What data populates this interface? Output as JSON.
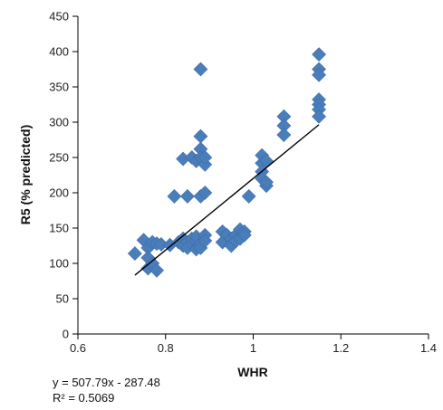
{
  "chart_data": {
    "type": "scatter",
    "title": "",
    "xlabel": "WHR",
    "ylabel": "R5 (% predicted)",
    "xlim": [
      0.6,
      1.4
    ],
    "ylim": [
      0,
      450
    ],
    "xticks": [
      "0.6",
      "0.8",
      "1",
      "1.2",
      "1.4"
    ],
    "yticks": [
      "0",
      "50",
      "100",
      "150",
      "200",
      "250",
      "300",
      "350",
      "400",
      "450"
    ],
    "grid": false,
    "legend": "none",
    "marker_color": "#4a7ebb",
    "trendline": {
      "slope": 507.79,
      "intercept": -287.48,
      "x_range": [
        0.73,
        1.15
      ],
      "equation_label": "y = 507.79x - 287.48",
      "r2_label": "R² = 0.5069",
      "color": "#000000"
    },
    "points": [
      {
        "x": 0.73,
        "y": 114
      },
      {
        "x": 0.75,
        "y": 133
      },
      {
        "x": 0.76,
        "y": 122
      },
      {
        "x": 0.76,
        "y": 108
      },
      {
        "x": 0.76,
        "y": 93
      },
      {
        "x": 0.77,
        "y": 100
      },
      {
        "x": 0.77,
        "y": 130
      },
      {
        "x": 0.78,
        "y": 128
      },
      {
        "x": 0.78,
        "y": 90
      },
      {
        "x": 0.79,
        "y": 127
      },
      {
        "x": 0.81,
        "y": 126
      },
      {
        "x": 0.82,
        "y": 195
      },
      {
        "x": 0.83,
        "y": 130
      },
      {
        "x": 0.84,
        "y": 135
      },
      {
        "x": 0.84,
        "y": 125
      },
      {
        "x": 0.84,
        "y": 248
      },
      {
        "x": 0.85,
        "y": 195
      },
      {
        "x": 0.85,
        "y": 130
      },
      {
        "x": 0.85,
        "y": 122
      },
      {
        "x": 0.86,
        "y": 250
      },
      {
        "x": 0.86,
        "y": 128
      },
      {
        "x": 0.86,
        "y": 135
      },
      {
        "x": 0.87,
        "y": 120
      },
      {
        "x": 0.87,
        "y": 132
      },
      {
        "x": 0.87,
        "y": 245
      },
      {
        "x": 0.87,
        "y": 138
      },
      {
        "x": 0.88,
        "y": 375
      },
      {
        "x": 0.88,
        "y": 280
      },
      {
        "x": 0.88,
        "y": 262
      },
      {
        "x": 0.88,
        "y": 250
      },
      {
        "x": 0.88,
        "y": 195
      },
      {
        "x": 0.88,
        "y": 128
      },
      {
        "x": 0.88,
        "y": 122
      },
      {
        "x": 0.89,
        "y": 240
      },
      {
        "x": 0.89,
        "y": 250
      },
      {
        "x": 0.89,
        "y": 200
      },
      {
        "x": 0.89,
        "y": 140
      },
      {
        "x": 0.89,
        "y": 132
      },
      {
        "x": 0.93,
        "y": 145
      },
      {
        "x": 0.93,
        "y": 130
      },
      {
        "x": 0.94,
        "y": 140
      },
      {
        "x": 0.95,
        "y": 135
      },
      {
        "x": 0.95,
        "y": 125
      },
      {
        "x": 0.96,
        "y": 140
      },
      {
        "x": 0.96,
        "y": 132
      },
      {
        "x": 0.97,
        "y": 148
      },
      {
        "x": 0.97,
        "y": 135
      },
      {
        "x": 0.98,
        "y": 145
      },
      {
        "x": 0.98,
        "y": 140
      },
      {
        "x": 0.99,
        "y": 195
      },
      {
        "x": 1.02,
        "y": 253
      },
      {
        "x": 1.02,
        "y": 242
      },
      {
        "x": 1.02,
        "y": 230
      },
      {
        "x": 1.02,
        "y": 220
      },
      {
        "x": 1.03,
        "y": 210
      },
      {
        "x": 1.03,
        "y": 215
      },
      {
        "x": 1.03,
        "y": 245
      },
      {
        "x": 1.07,
        "y": 308
      },
      {
        "x": 1.07,
        "y": 295
      },
      {
        "x": 1.07,
        "y": 282
      },
      {
        "x": 1.15,
        "y": 396
      },
      {
        "x": 1.15,
        "y": 375
      },
      {
        "x": 1.15,
        "y": 367
      },
      {
        "x": 1.15,
        "y": 332
      },
      {
        "x": 1.15,
        "y": 325
      },
      {
        "x": 1.15,
        "y": 318
      },
      {
        "x": 1.15,
        "y": 308
      }
    ]
  }
}
